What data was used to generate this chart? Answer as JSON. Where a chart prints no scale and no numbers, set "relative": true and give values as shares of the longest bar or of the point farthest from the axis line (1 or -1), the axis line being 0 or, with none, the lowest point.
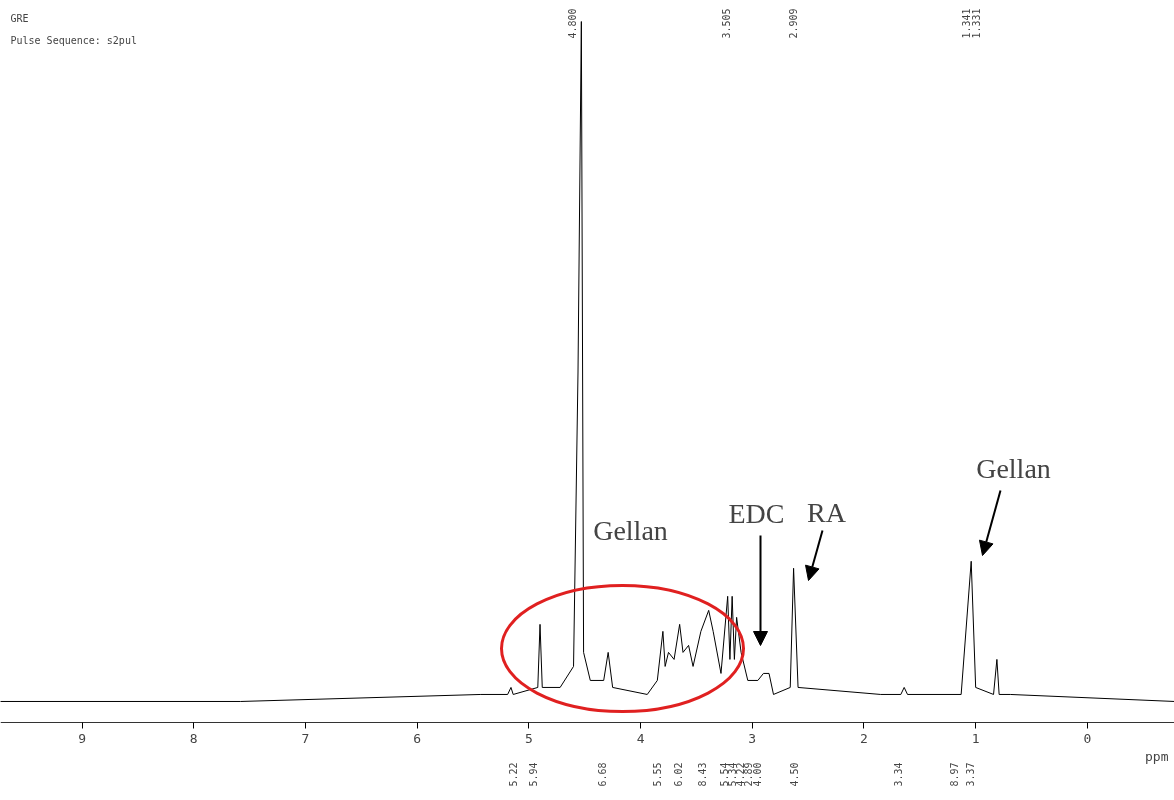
{
  "chart_data": {
    "type": "line",
    "relative": true,
    "title": "GRE",
    "subtitle": "Pulse Sequence: s2pul",
    "xlabel": "ppm",
    "x": [
      9.73,
      7.58,
      5.43,
      5.19,
      5.16,
      5.14,
      4.92,
      4.9,
      4.88,
      4.72,
      4.6,
      4.56,
      4.53,
      4.51,
      4.45,
      4.33,
      4.29,
      4.25,
      3.94,
      3.85,
      3.8,
      3.78,
      3.75,
      3.7,
      3.65,
      3.62,
      3.57,
      3.53,
      3.46,
      3.39,
      3.35,
      3.28,
      3.22,
      3.2,
      3.18,
      3.16,
      3.14,
      3.1,
      3.04,
      2.95,
      2.9,
      2.85,
      2.81,
      2.66,
      2.63,
      2.59,
      1.85,
      1.67,
      1.64,
      1.61,
      1.13,
      1.04,
      1.0,
      0.84,
      0.81,
      0.79,
      0.69,
      -0.78
    ],
    "series": [
      {
        "color": "#000000",
        "values": [
          0.03,
          0.03,
          0.04,
          0.04,
          0.05,
          0.04,
          0.05,
          0.14,
          0.05,
          0.05,
          0.08,
          0.5,
          1,
          0.1,
          0.06,
          0.06,
          0.1,
          0.05,
          0.04,
          0.06,
          0.13,
          0.08,
          0.1,
          0.09,
          0.14,
          0.1,
          0.11,
          0.08,
          0.13,
          0.16,
          0.13,
          0.07,
          0.18,
          0.09,
          0.18,
          0.09,
          0.15,
          0.1,
          0.06,
          0.06,
          0.07,
          0.07,
          0.04,
          0.05,
          0.22,
          0.05,
          0.04,
          0.04,
          0.05,
          0.04,
          0.04,
          0.23,
          0.05,
          0.04,
          0.09,
          0.04,
          0.04,
          0.03
        ]
      }
    ],
    "xlim": [
      9.73,
      -0.78
    ],
    "xticks": [
      0,
      1,
      2,
      3,
      4,
      5,
      6,
      7,
      8,
      9
    ],
    "line_style": "solid",
    "annotations": [
      "Gellan",
      "EDC",
      "RA",
      "Gellan",
      "4.800",
      "3.505",
      "2.909",
      "1.341",
      "1.331",
      "5.22",
      "5.94",
      "6.68",
      "5.55",
      "6.02",
      "8.43",
      "5.54",
      "5.34",
      "4.22",
      "2.89",
      "4.00",
      "4.50",
      "3.34",
      "8.97",
      "3.37"
    ]
  }
}
